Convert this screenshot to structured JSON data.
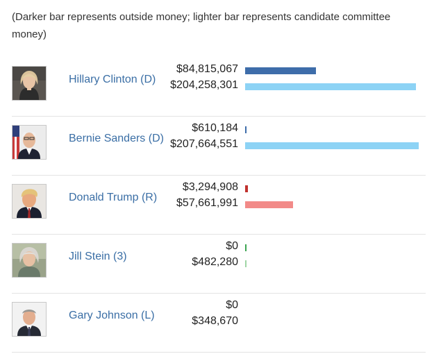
{
  "note": "(Darker bar represents outside money; lighter bar represents candidate committee money)",
  "chart_data": {
    "type": "bar",
    "orientation": "horizontal",
    "categories": [
      "Hillary Clinton (D)",
      "Bernie Sanders (D)",
      "Donald Trump (R)",
      "Jill Stein (3)",
      "Gary Johnson (L)"
    ],
    "series": [
      {
        "values": [
          84815067,
          610184,
          3294908,
          0,
          0
        ],
        "labels": [
          "$84,815,067",
          "$610,184",
          "$3,294,908",
          "$0",
          "$0"
        ]
      },
      {
        "values": [
          204258301,
          207664551,
          57661991,
          482280,
          348670
        ],
        "labels": [
          "$204,258,301",
          "$207,664,551",
          "$57,661,991",
          "$482,280",
          "$348,670"
        ]
      }
    ],
    "colors": [
      {
        "outside": "#3e6daa",
        "committee": "#8dd3f5"
      },
      {
        "outside": "#3e6daa",
        "committee": "#8dd3f5"
      },
      {
        "outside": "#c0312e",
        "committee": "#f28a88"
      },
      {
        "outside": "#3ca552",
        "committee": "#9fd6a5"
      },
      {
        "outside": "",
        "committee": ""
      }
    ],
    "xlim": [
      0,
      207664551
    ]
  },
  "candidates": [
    {
      "name": "Hillary Clinton (D)",
      "outside": "$84,815,067",
      "committee": "$204,258,301",
      "photo": "hillary-clinton-photo"
    },
    {
      "name": "Bernie Sanders (D)",
      "outside": "$610,184",
      "committee": "$207,664,551",
      "photo": "bernie-sanders-photo"
    },
    {
      "name": "Donald Trump (R)",
      "outside": "$3,294,908",
      "committee": "$57,661,991",
      "photo": "donald-trump-photo"
    },
    {
      "name": "Jill Stein (3)",
      "outside": "$0",
      "committee": "$482,280",
      "photo": "jill-stein-photo"
    },
    {
      "name": "Gary Johnson (L)",
      "outside": "$0",
      "committee": "$348,670",
      "photo": "gary-johnson-photo"
    }
  ]
}
